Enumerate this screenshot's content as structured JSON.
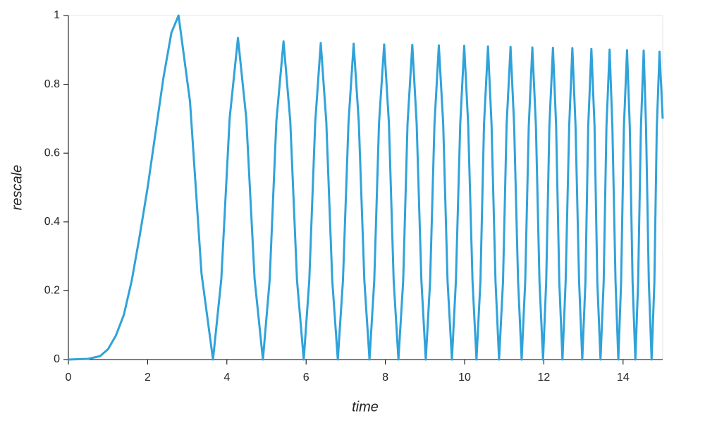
{
  "chart_data": {
    "type": "line",
    "xlabel": "time",
    "ylabel": "rescale",
    "x": [
      0,
      0.5,
      0.8,
      1.0,
      1.2,
      1.4,
      1.6,
      1.8,
      2.0,
      2.2,
      2.4,
      2.6,
      2.78,
      3.07,
      3.36,
      3.65,
      3.86,
      4.07,
      4.28,
      4.49,
      4.7,
      4.91,
      5.08,
      5.25,
      5.43,
      5.6,
      5.77,
      5.94,
      6.08,
      6.23,
      6.37,
      6.51,
      6.66,
      6.8,
      6.93,
      7.07,
      7.2,
      7.33,
      7.47,
      7.6,
      7.72,
      7.84,
      7.97,
      8.09,
      8.21,
      8.33,
      8.45,
      8.56,
      8.68,
      8.79,
      8.91,
      9.02,
      9.13,
      9.24,
      9.35,
      9.46,
      9.57,
      9.68,
      9.78,
      9.89,
      9.99,
      10.09,
      10.2,
      10.3,
      10.4,
      10.49,
      10.59,
      10.68,
      10.78,
      10.87,
      10.97,
      11.06,
      11.16,
      11.25,
      11.35,
      11.44,
      11.53,
      11.62,
      11.71,
      11.8,
      11.89,
      11.98,
      12.06,
      12.14,
      12.23,
      12.31,
      12.39,
      12.47,
      12.55,
      12.64,
      12.72,
      12.8,
      12.89,
      12.97,
      13.05,
      13.12,
      13.2,
      13.28,
      13.35,
      13.43,
      13.51,
      13.58,
      13.66,
      13.73,
      13.81,
      13.88,
      13.95,
      14.02,
      14.1,
      14.17,
      14.24,
      14.31,
      14.38,
      14.45,
      14.52,
      14.58,
      14.65,
      14.72,
      14.79,
      14.85,
      14.92,
      15.0
    ],
    "series": [
      {
        "name": "rescale",
        "color": "#30a2da",
        "values": [
          0,
          0.002,
          0.01,
          0.03,
          0.07,
          0.13,
          0.23,
          0.36,
          0.5,
          0.66,
          0.82,
          0.95,
          1,
          0.75,
          0.25,
          0,
          0.234,
          0.701,
          0.935,
          0.701,
          0.234,
          0,
          0.231,
          0.694,
          0.925,
          0.694,
          0.231,
          0,
          0.23,
          0.69,
          0.92,
          0.69,
          0.23,
          0,
          0.23,
          0.689,
          0.918,
          0.689,
          0.23,
          0,
          0.229,
          0.687,
          0.916,
          0.687,
          0.229,
          0,
          0.229,
          0.686,
          0.915,
          0.686,
          0.229,
          0,
          0.228,
          0.685,
          0.913,
          0.685,
          0.228,
          0,
          0.228,
          0.684,
          0.912,
          0.684,
          0.228,
          0,
          0.228,
          0.683,
          0.91,
          0.683,
          0.228,
          0,
          0.227,
          0.682,
          0.909,
          0.682,
          0.227,
          0,
          0.227,
          0.68,
          0.907,
          0.68,
          0.227,
          0,
          0.227,
          0.68,
          0.906,
          0.68,
          0.227,
          0,
          0.226,
          0.679,
          0.905,
          0.679,
          0.226,
          0,
          0.226,
          0.677,
          0.903,
          0.677,
          0.226,
          0,
          0.225,
          0.676,
          0.901,
          0.676,
          0.225,
          0,
          0.225,
          0.674,
          0.899,
          0.674,
          0.225,
          0,
          0.225,
          0.674,
          0.898,
          0.674,
          0.225,
          0,
          0.224,
          0.671,
          0.895,
          0.7
        ]
      }
    ],
    "xlim": [
      0,
      15
    ],
    "xticks": [
      0,
      2,
      4,
      6,
      8,
      10,
      12,
      14
    ],
    "ylim": [
      0,
      1
    ],
    "yticks": [
      0,
      0.2,
      0.4,
      0.6,
      0.8,
      1
    ]
  }
}
